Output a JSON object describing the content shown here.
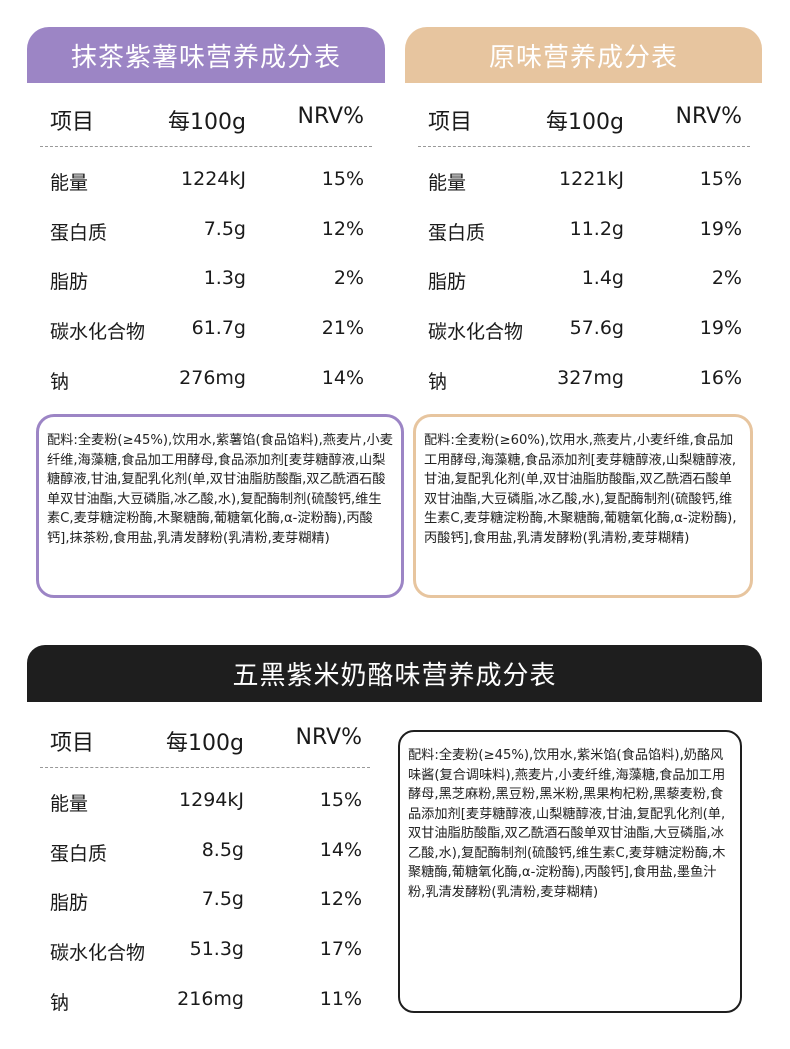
{
  "colors": {
    "matcha": "#9c85c5",
    "original": "#e7c59f",
    "black": "#1e1e1e"
  },
  "headers": {
    "col_item": "项目",
    "col_per100": "每100g",
    "col_nrv": "NRV%"
  },
  "panels": [
    {
      "title": "抹茶紫薯味营养成分表",
      "rows": [
        [
          "能量",
          "1224kJ",
          "15%"
        ],
        [
          "蛋白质",
          "7.5g",
          "12%"
        ],
        [
          "脂肪",
          "1.3g",
          "2%"
        ],
        [
          "碳水化合物",
          "61.7g",
          "21%"
        ],
        [
          "钠",
          "276mg",
          "14%"
        ]
      ],
      "ingredients": "配料:全麦粉(≥45%),饮用水,紫薯馅(食品馅料),燕麦片,小麦纤维,海藻糖,食品加工用酵母,食品添加剂[麦芽糖醇液,山梨糖醇液,甘油,复配乳化剂(单,双甘油脂肪酸酯,双乙酰酒石酸单双甘油酯,大豆磷脂,冰乙酸,水),复配酶制剂(硫酸钙,维生素C,麦芽糖淀粉酶,木聚糖酶,葡糖氧化酶,α-淀粉酶),丙酸钙],抹茶粉,食用盐,乳清发酵粉(乳清粉,麦芽糊精)"
    },
    {
      "title": "原味营养成分表",
      "rows": [
        [
          "能量",
          "1221kJ",
          "15%"
        ],
        [
          "蛋白质",
          "11.2g",
          "19%"
        ],
        [
          "脂肪",
          "1.4g",
          "2%"
        ],
        [
          "碳水化合物",
          "57.6g",
          "19%"
        ],
        [
          "钠",
          "327mg",
          "16%"
        ]
      ],
      "ingredients": "配料:全麦粉(≥60%),饮用水,燕麦片,小麦纤维,食品加工用酵母,海藻糖,食品添加剂[麦芽糖醇液,山梨糖醇液,甘油,复配乳化剂(单,双甘油脂肪酸酯,双乙酰酒石酸单双甘油酯,大豆磷脂,冰乙酸,水),复配酶制剂(硫酸钙,维生素C,麦芽糖淀粉酶,木聚糖酶,葡糖氧化酶,α-淀粉酶),丙酸钙],食用盐,乳清发酵粉(乳清粉,麦芽糊精)"
    },
    {
      "title": "五黑紫米奶酪味营养成分表",
      "rows": [
        [
          "能量",
          "1294kJ",
          "15%"
        ],
        [
          "蛋白质",
          "8.5g",
          "14%"
        ],
        [
          "脂肪",
          "7.5g",
          "12%"
        ],
        [
          "碳水化合物",
          "51.3g",
          "17%"
        ],
        [
          "钠",
          "216mg",
          "11%"
        ]
      ],
      "ingredients": "配料:全麦粉(≥45%),饮用水,紫米馅(食品馅料),奶酪风味酱(复合调味料),燕麦片,小麦纤维,海藻糖,食品加工用酵母,黑芝麻粉,黑豆粉,黑米粉,黑果枸杞粉,黑藜麦粉,食品添加剂[麦芽糖醇液,山梨糖醇液,甘油,复配乳化剂(单,双甘油脂肪酸酯,双乙酰酒石酸单双甘油酯,大豆磷脂,冰乙酸,水),复配酶制剂(硫酸钙,维生素C,麦芽糖淀粉酶,木聚糖酶,葡糖氧化酶,α-淀粉酶),丙酸钙],食用盐,墨鱼汁粉,乳清发酵粉(乳清粉,麦芽糊精)"
    }
  ]
}
